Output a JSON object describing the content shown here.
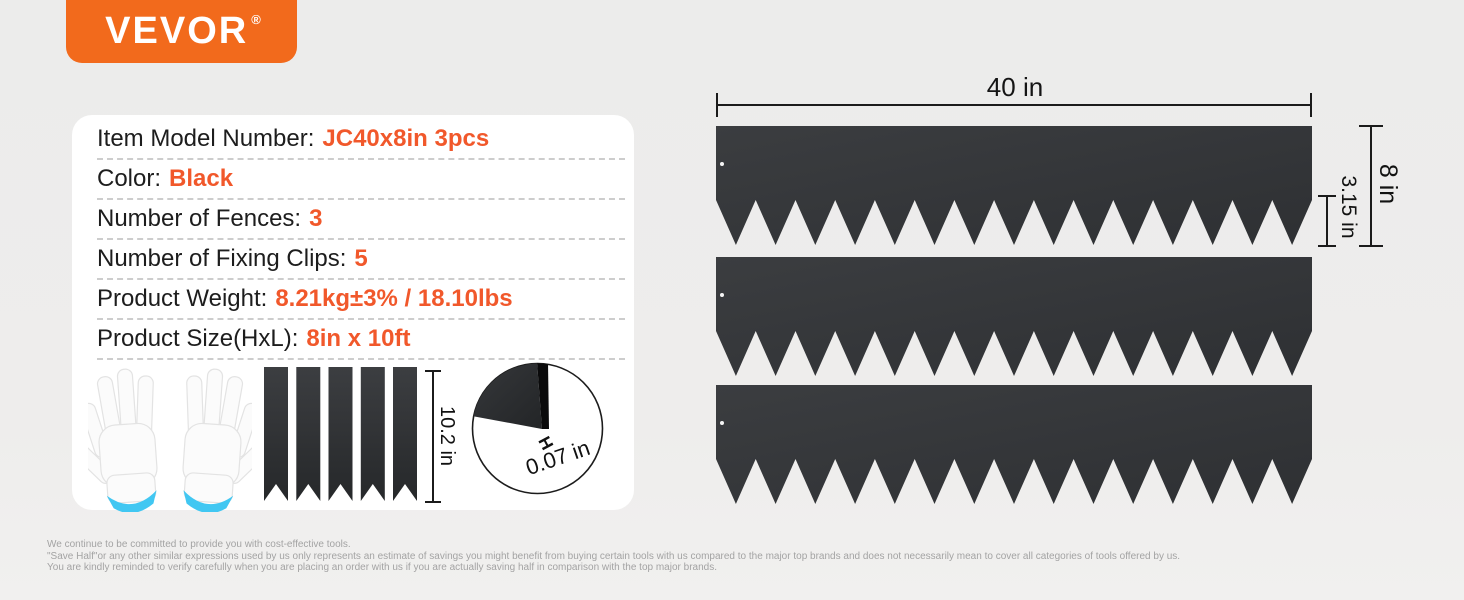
{
  "brand": {
    "name": "VEVOR",
    "registered": "®"
  },
  "specs": {
    "rows": [
      {
        "label": "Item Model Number:",
        "value": "JC40x8in 3pcs"
      },
      {
        "label": "Color:",
        "value": "Black"
      },
      {
        "label": "Number of Fences:",
        "value": "3"
      },
      {
        "label": "Number of Fixing Clips:",
        "value": "5"
      },
      {
        "label": "Product Weight:",
        "value": "8.21kg±3% / 18.10lbs"
      },
      {
        "label": "Product Size(HxL):",
        "value": "8in x 10ft"
      }
    ]
  },
  "dimensions": {
    "width_label": "40 in",
    "height_label": "8 in",
    "teeth_label": "3.15 in"
  },
  "accessories": {
    "clip_height_label": "10.2 in",
    "thickness_label": "0.07 in",
    "thickness_marker": "H",
    "fence_count": 3,
    "clip_count": 5
  },
  "footer": {
    "lines": [
      "We continue to be committed to provide you with cost-effective tools.",
      "\"Save Half\"or any other similar expressions used by us only represents an estimate of savings you might benefit from buying certain tools with us compared to the major top brands and does not necessarily mean to cover all categories of tools offered by us.",
      "You are kindly reminded to verify carefully when you are placing an order with us if you are actually saving half in comparison with the top major brands."
    ]
  },
  "colors": {
    "accent_orange": "#f1582b",
    "logo_background": "#f26a1c",
    "panel_dark": "#333538",
    "glove_trim_blue": "#41c7f2",
    "background": "#eeedec"
  }
}
